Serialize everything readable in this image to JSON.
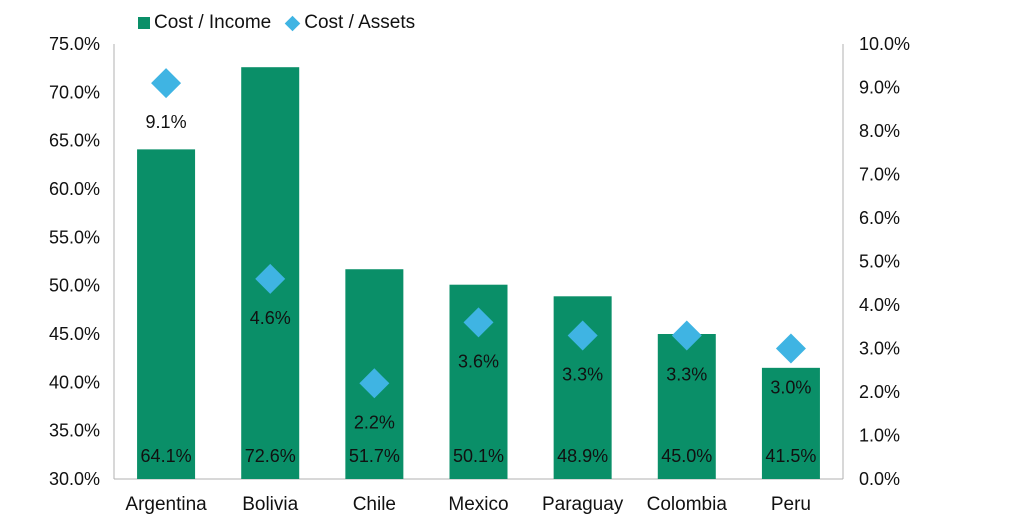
{
  "chart_data": {
    "type": "bar",
    "categories": [
      "Argentina",
      "Bolivia",
      "Chile",
      "Mexico",
      "Paraguay",
      "Colombia",
      "Peru"
    ],
    "series": [
      {
        "name": "Cost / Income",
        "type": "bar",
        "axis": "left",
        "color": "#0a8f68",
        "values": [
          64.1,
          72.6,
          51.7,
          50.1,
          48.9,
          45.0,
          41.5
        ],
        "labels": [
          "64.1%",
          "72.6%",
          "51.7%",
          "50.1%",
          "48.9%",
          "45.0%",
          "41.5%"
        ]
      },
      {
        "name": "Cost / Assets",
        "type": "scatter",
        "marker": "diamond",
        "axis": "right",
        "color": "#3fb4e3",
        "values": [
          9.1,
          4.6,
          2.2,
          3.6,
          3.3,
          3.3,
          3.0
        ],
        "labels": [
          "9.1%",
          "4.6%",
          "2.2%",
          "3.6%",
          "3.3%",
          "3.3%",
          "3.0%"
        ]
      }
    ],
    "y_left": {
      "ylim": [
        30,
        75
      ],
      "ticks": [
        "30.0%",
        "35.0%",
        "40.0%",
        "45.0%",
        "50.0%",
        "55.0%",
        "60.0%",
        "65.0%",
        "70.0%",
        "75.0%"
      ]
    },
    "y_right": {
      "ylim": [
        0,
        10
      ],
      "ticks": [
        "0.0%",
        "1.0%",
        "2.0%",
        "3.0%",
        "4.0%",
        "5.0%",
        "6.0%",
        "7.0%",
        "8.0%",
        "9.0%",
        "10.0%"
      ]
    },
    "grid": false,
    "legend_position": "top-left"
  }
}
